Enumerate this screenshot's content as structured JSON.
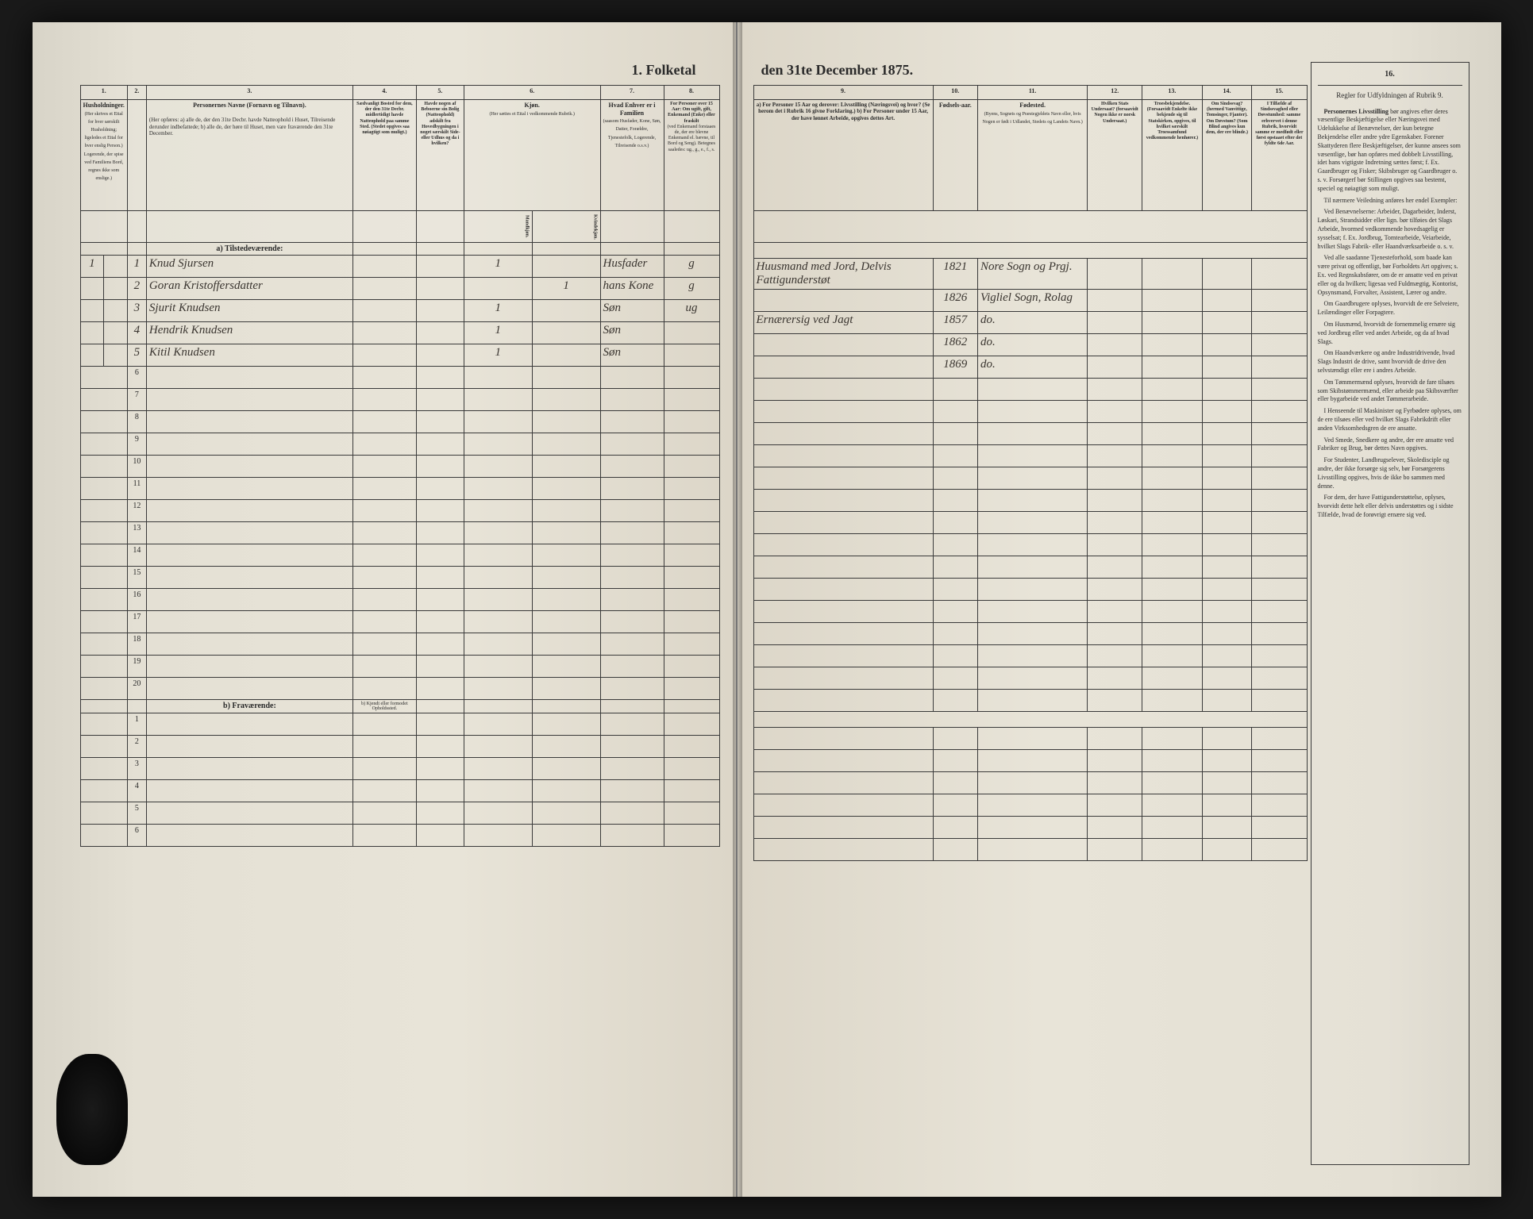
{
  "title_left": "1. Folketal",
  "title_right": "den 31te December 1875.",
  "columns_left": {
    "c1": "1.",
    "c2": "2.",
    "c3": "3.",
    "c4": "4.",
    "c5": "5.",
    "c6": "6.",
    "c7": "7.",
    "c8": "8."
  },
  "headers_left": {
    "c1": "Husholdninger.",
    "c1_detail": "(Her skrives et Ettal for hver særskilt Husholdning; ligeledes et Ettal for hver enslig Person.) Logerende, der spise ved Familiens Bord, regnes ikke som enslige.)",
    "c3": "Personernes Navne (Fornavn og Tilnavn).",
    "c3_detail": "(Her opføres: a) alle de, der den 31te Decbr. havde Natteophold i Huset, Tilreisende derunder indbefattede; b) alle de, der høre til Huset, men vare fraværende den 31te December.",
    "c4": "Sædvanligt Bosted for dem, der den 31te Decbr. midlertidigt havde Natteophold paa samme Sted. (Stedet opgives saa nøiagtigt som muligt.)",
    "c5": "Havde nogen af Beboerne sin Bolig (Natteophold) adskilt fra Hovedbygningen i noget særskilt Side- eller Udhus og da i hvilken?",
    "c6": "Kjøn.",
    "c6_detail": "(Her sættes et Ettal i vedkommende Rubrik.)",
    "c6a": "Mandkjøn.",
    "c6b": "Kvindekjøn.",
    "c7": "Hvad Enhver er i Familien",
    "c7_detail": "(saasom Husfader, Kone, Søn, Datter, Forældre, Tjenestefolk, Logerende, Tilreisende o.s.v.)",
    "c8": "For Personer over 15 Aar: Om ugift, gift, Enkemand (Enke) eller fraskilt",
    "c8_detail": "(ved Enkemand forstaaes de, der ere blevne Enkemand el. bævne, til Bord og Seng). Betegnes saaledes: ug., g., e., f., s."
  },
  "columns_right": {
    "c9": "9.",
    "c10": "10.",
    "c11": "11.",
    "c12": "12.",
    "c13": "13.",
    "c14": "14.",
    "c15": "15.",
    "c16": "16."
  },
  "headers_right": {
    "c9": "a) For Personer 15 Aar og derover: Livsstilling (Næringsvei) og hvor? (Se herom det i Rubrik 16 givne Forklaring.) b) For Personer under 15 Aar, der have lønnet Arbeide, opgives dettes Art.",
    "c10": "Fødsels-aar.",
    "c11": "Fødested.",
    "c11_detail": "(Byens, Sognets og Præstegjeldets Navn eller, hvis Nogen er født i Udlandet, Stedets og Landets Navn.)",
    "c12": "Hvilken Stats Undersaat? (forsaavidt Nogen ikke er norsk Undersaat.)",
    "c13": "Troesbekjendelse. (Forsaavidt Enkelte ikke bekjende sig til Statskirken, opgives, til hvilket særskilt Troessamfund vedkommende henhører.)",
    "c14": "Om Sindssvag? (hermed Vanvittige, Tomsinger, Fjanter). Om Døvstum? (Som Blind angives kun dem, der ere blinde.)",
    "c15": "I Tilfælde af Sindssvaghed eller Døvstumhed: samme erhvervet i denne Rubrik, hvorvidt samme er medfødt eller først opstaaet efter det fyldte 6de Aar."
  },
  "section_a": "a) Tilstedeværende:",
  "section_b": "b) Fraværende:",
  "section_b_col4": "b) Kjendt eller formodet Opholdssted.",
  "instructions_header": "Regler for Udfyldningen af Rubrik 9.",
  "instructions_text": {
    "p1_lead": "Personernes Livsstilling",
    "p1": "bør angives efter deres væsentlige Beskjæftigelse eller Næringsvei med Udelukkelse af Benævnelser, der kun betegne Bekjendelse eller andre ydre Egenskaber. Forener Skattyderen flere Beskjæftigelser, der kunne ansees som væsentlige, bør han opføres med dobbelt Livsstilling, idet hans vigtigste Indretning sættes først; f. Ex. Gaardbruger og Fisker; Skibsbruger og Gaardbruger o. s. v. Forsørgerf bør Stillingen opgives saa bestemt, speciel og nøiagtigt som muligt.",
    "p2": "Til nærmere Veiledning anføres her endel Exempler:",
    "p3": "Ved Benævnelserne: Arbeider, Dagarbeider, Inderst, Løskari, Strandsidder eller lign. bør tilføies det Slags Arbeide, hvormed vedkommende hovedsagelig er sysselsat; f. Ex. Jordbrug, Tomtearbeide, Veiarbeide, hvilket Slags Fabrik- eller Haandværksarbeide o. s. v.",
    "p4": "Ved alle saadanne Tjenesteforhold, som baade kan være privat og offentligt, bør Forholdets Art opgives; s. Ex. ved Regnskabsfører, om de er ansatte ved en privat eller og da hvilken; ligesaa ved Fuldmægtig, Kontorist, Opsynsmand, Forvalter, Assistent, Lærer og andre.",
    "p5": "Om Gaardbrugere oplyses, hvorvidt de ere Selveiere, Leilændinger eller Forpagtere.",
    "p6": "Om Husmænd, hvorvidt de fornemmelig ernære sig ved Jordbrug eller ved andet Arbeide, og da af hvad Slags.",
    "p7": "Om Haandværkere og andre Industridrivende, hvad Slags Industri de drive, samt hvorvidt de drive den selvstændigt eller ere i andres Arbeide.",
    "p8": "Om Tømmermænd oplyses, hvorvidt de fare tilsøes som Skibstømmermænd, eller arbeide paa Skibsværfter eller bygarbeide ved andet Tømmerarbeide.",
    "p9": "I Henseende til Maskinister og Fyrbødere oplyses, om de ere tilsøes eller ved hvilket Slags Fabrikdrift eller anden Virksomhedsgren de ere ansatte.",
    "p10": "Ved Smede, Snedkere og andre, der ere ansatte ved Fabriker og Brug, bør dettes Navn opgives.",
    "p11": "For Studenter, Landbrugselever, Skoledisciple og andre, der ikke forsørge sig selv, bør Forsørgerens Livsstilling opgives, hvis de ikke bo sammen med denne.",
    "p12": "For dem, der have Fattigunderstøttelse, oplyses, hvorvidt dette helt eller delvis understøttes og i sidste Tilfælde, hvad de forøvrigt ernære sig ved."
  },
  "rows": [
    {
      "n": "1",
      "p": "1",
      "name": "Knud Sjursen",
      "col5": "",
      "m": "1",
      "f": "",
      "rel": "Husfader",
      "ms": "g",
      "occ": "Huusmand med Jord, Delvis Fattigunderstøt",
      "year": "1821",
      "place": "Nore Sogn og Prgj."
    },
    {
      "n": "",
      "p": "2",
      "name": "Goran Kristoffersdatter",
      "col5": "",
      "m": "",
      "f": "1",
      "rel": "hans Kone",
      "ms": "g",
      "occ": "",
      "year": "1826",
      "place": "Vigliel Sogn, Rolag"
    },
    {
      "n": "",
      "p": "3",
      "name": "Sjurit Knudsen",
      "col5": "",
      "m": "1",
      "f": "",
      "rel": "Søn",
      "ms": "ug",
      "occ": "Ernærersig ved Jagt",
      "year": "1857",
      "place": "do."
    },
    {
      "n": "",
      "p": "4",
      "name": "Hendrik Knudsen",
      "col5": "",
      "m": "1",
      "f": "",
      "rel": "Søn",
      "ms": "",
      "occ": "",
      "year": "1862",
      "place": "do."
    },
    {
      "n": "",
      "p": "5",
      "name": "Kitil Knudsen",
      "col5": "",
      "m": "1",
      "f": "",
      "rel": "Søn",
      "ms": "",
      "occ": "",
      "year": "1869",
      "place": "do."
    }
  ],
  "empty_rows_a": [
    "6",
    "7",
    "8",
    "9",
    "10",
    "11",
    "12",
    "13",
    "14",
    "15",
    "16",
    "17",
    "18",
    "19",
    "20"
  ],
  "empty_rows_b": [
    "1",
    "2",
    "3",
    "4",
    "5",
    "6"
  ],
  "colors": {
    "paper": "#e8e4d8",
    "ink": "#2a2a2a",
    "rule": "#3a3a3a",
    "handwriting": "#4a4236"
  }
}
